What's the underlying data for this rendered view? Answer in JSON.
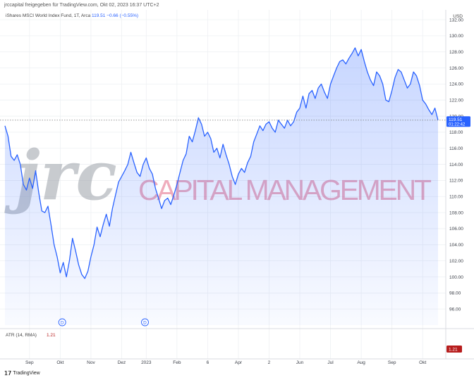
{
  "header": {
    "published": "jrccapital freigegeben für TradingView.com, Okt 02, 2023 16:37 UTC+2",
    "instrument": "iShares MSCI World Index Fund, 1T, Arca",
    "last": "119.51",
    "change": "−0.66 (−0.55%)",
    "currency": "USD"
  },
  "watermark": {
    "logo": "jrc",
    "text": "CAPITAL MANAGEMENT"
  },
  "price_label": {
    "value": "119.51",
    "countdown": "01:22:42"
  },
  "atr": {
    "label": "ATR (14, RMA)",
    "value": "1.21",
    "badge": "1.21"
  },
  "dividend_markers": [
    "D",
    "D"
  ],
  "footer": {
    "brand": "TradingView"
  },
  "colors": {
    "line": "#2962ff",
    "fill": "#2962ff",
    "atr_badge": "#b71c1c",
    "watermark": "#e05a7a"
  },
  "chart_data": {
    "type": "area",
    "ylim": [
      94,
      132
    ],
    "y_ticks": [
      96,
      98,
      100,
      102,
      104,
      106,
      108,
      110,
      112,
      114,
      116,
      118,
      120,
      122,
      124,
      126,
      128,
      130,
      132
    ],
    "y_tick_labels": [
      "96.00",
      "98.00",
      "100.00",
      "102.00",
      "104.00",
      "106.00",
      "108.00",
      "110.00",
      "112.00",
      "114.00",
      "116.00",
      "118.00",
      "120.00",
      "122.00",
      "124.00",
      "126.00",
      "128.00",
      "130.00",
      "132.00"
    ],
    "x_labels": [
      "Sep",
      "Okt",
      "Nov",
      "Dez",
      "2023",
      "Feb",
      "6",
      "Apr",
      "2",
      "Jun",
      "Jul",
      "Aug",
      "Sep",
      "Okt"
    ],
    "x_label_idx": [
      8,
      18,
      28,
      38,
      46,
      56,
      66,
      76,
      86,
      96,
      106,
      116,
      126,
      136
    ],
    "points": [
      118.8,
      117.5,
      115.0,
      114.5,
      115.2,
      114.0,
      111.5,
      110.8,
      112.3,
      111.0,
      113.2,
      110.5,
      108.2,
      108.0,
      108.8,
      106.5,
      104.0,
      102.5,
      100.5,
      101.8,
      100.0,
      102.0,
      104.8,
      103.2,
      101.5,
      100.3,
      99.8,
      100.7,
      102.5,
      104.0,
      106.2,
      105.0,
      106.5,
      107.8,
      106.3,
      108.5,
      110.2,
      111.8,
      112.5,
      113.2,
      114.0,
      115.5,
      114.2,
      113.0,
      112.5,
      114.0,
      114.8,
      113.5,
      112.8,
      111.0,
      109.8,
      108.5,
      109.5,
      109.8,
      109.0,
      110.2,
      111.5,
      113.0,
      114.5,
      115.3,
      117.5,
      116.8,
      118.2,
      119.8,
      119.0,
      117.5,
      118.0,
      117.2,
      115.5,
      116.0,
      114.8,
      116.5,
      115.2,
      114.0,
      112.5,
      111.5,
      112.8,
      113.5,
      113.0,
      114.2,
      115.0,
      116.8,
      117.8,
      118.8,
      118.2,
      119.0,
      119.3,
      118.5,
      118.0,
      119.5,
      119.0,
      118.5,
      119.5,
      118.8,
      119.3,
      120.5,
      121.0,
      122.5,
      121.0,
      122.8,
      123.2,
      122.2,
      123.5,
      124.0,
      123.0,
      122.2,
      124.0,
      125.0,
      126.0,
      126.8,
      127.0,
      126.5,
      127.2,
      127.8,
      128.5,
      127.5,
      128.3,
      126.8,
      125.5,
      124.5,
      123.8,
      125.5,
      125.0,
      124.0,
      122.0,
      121.8,
      123.2,
      124.8,
      125.8,
      125.5,
      124.5,
      123.5,
      124.0,
      125.5,
      125.0,
      123.8,
      122.0,
      121.5,
      120.8,
      120.2,
      121.0,
      119.5
    ]
  }
}
